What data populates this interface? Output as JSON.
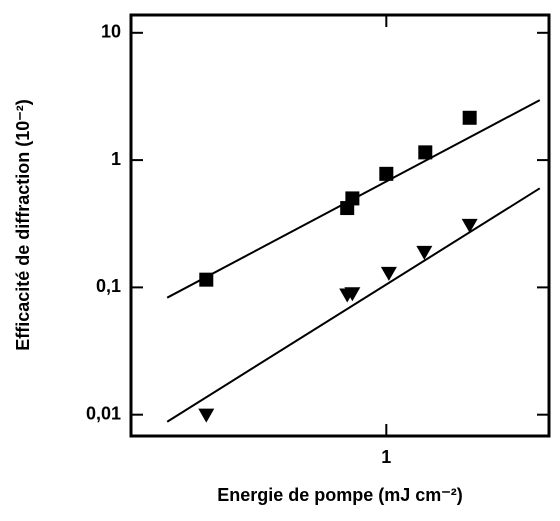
{
  "chart_data": {
    "type": "scatter",
    "xlabel": "Energie de pompe (mJ cm⁻²)",
    "ylabel": "Efficacité de diffraction (10⁻²)",
    "xscale": "log",
    "yscale": "log",
    "xlim": [
      0.14,
      3.5
    ],
    "ylim": [
      0.0068,
      13.8
    ],
    "xticks": [
      1
    ],
    "yticks": [
      {
        "value": 0.01,
        "label": "0,01"
      },
      {
        "value": 0.1,
        "label": "0,1"
      },
      1,
      10
    ],
    "color": "#000000",
    "series": [
      {
        "marker": "square",
        "x": [
          0.25,
          0.74,
          0.77,
          1.0,
          1.35,
          1.9
        ],
        "values": [
          0.115,
          0.42,
          0.5,
          0.78,
          1.15,
          2.15
        ]
      },
      {
        "marker": "triangle-down",
        "x": [
          0.25,
          0.74,
          0.77,
          1.02,
          1.34,
          1.9
        ],
        "values": [
          0.01,
          0.088,
          0.09,
          0.13,
          0.19,
          0.31
        ]
      }
    ],
    "fits": [
      {
        "x": [
          0.185,
          3.26
        ],
        "values": [
          0.083,
          2.96
        ]
      },
      {
        "x": [
          0.185,
          3.26
        ],
        "values": [
          0.0088,
          0.6
        ]
      }
    ]
  }
}
